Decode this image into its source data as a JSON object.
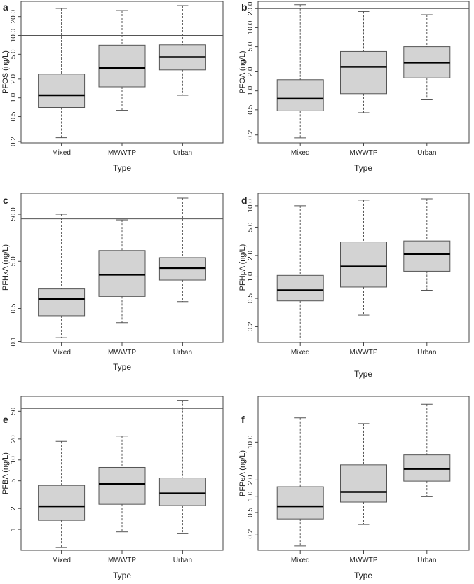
{
  "chart_data": [
    {
      "type": "box",
      "panel": "a",
      "ylabel": "PFOS (ng/L)",
      "xlabel": "Type",
      "yscale": "log",
      "ylim": [
        0.19,
        35
      ],
      "yticks": [
        0.2,
        0.5,
        1.0,
        2.0,
        5.0,
        10.0,
        20.0
      ],
      "ytick_labels": [
        "0.2",
        "0.5",
        "1.0",
        "2.0",
        "5.0",
        "10.0",
        "20.0"
      ],
      "reference_line": 10,
      "categories": [
        "Mixed",
        "MWWTP",
        "Urban"
      ],
      "boxes": [
        {
          "min": 0.23,
          "q1": 0.7,
          "median": 1.1,
          "q3": 2.4,
          "max": 27
        },
        {
          "min": 0.63,
          "q1": 1.5,
          "median": 3.0,
          "q3": 7.0,
          "max": 25
        },
        {
          "min": 1.1,
          "q1": 2.8,
          "median": 4.5,
          "q3": 7.1,
          "max": 30
        }
      ]
    },
    {
      "type": "box",
      "panel": "b",
      "ylabel": "PFOA (ng/L)",
      "xlabel": "Type",
      "yscale": "log",
      "ylim": [
        0.15,
        26
      ],
      "yticks": [
        0.2,
        0.5,
        1.0,
        2.0,
        5.0,
        10.0,
        20.0
      ],
      "ytick_labels": [
        "0.2",
        "0.5",
        "1.0",
        "2.0",
        "5.0",
        "10.0",
        "20.0"
      ],
      "reference_line": 20,
      "categories": [
        "Mixed",
        "MWWTP",
        "Urban"
      ],
      "boxes": [
        {
          "min": 0.18,
          "q1": 0.48,
          "median": 0.75,
          "q3": 1.5,
          "max": 23
        },
        {
          "min": 0.45,
          "q1": 0.9,
          "median": 2.4,
          "q3": 4.2,
          "max": 18
        },
        {
          "min": 0.72,
          "q1": 1.6,
          "median": 2.8,
          "q3": 5.0,
          "max": 16
        }
      ]
    },
    {
      "type": "box",
      "panel": "c",
      "ylabel": "PFHxA (ng/L)",
      "xlabel": "Type",
      "yscale": "log",
      "ylim": [
        0.095,
        140
      ],
      "yticks": [
        0.1,
        0.5,
        5.0,
        50.0
      ],
      "ytick_labels": [
        "0.1",
        "0.5",
        "5.0",
        "50.0"
      ],
      "reference_line": 40,
      "categories": [
        "Mixed",
        "MWWTP",
        "Urban"
      ],
      "boxes": [
        {
          "min": 0.12,
          "q1": 0.35,
          "median": 0.8,
          "q3": 1.3,
          "max": 50
        },
        {
          "min": 0.25,
          "q1": 0.9,
          "median": 2.6,
          "q3": 8.5,
          "max": 38
        },
        {
          "min": 0.7,
          "q1": 2.0,
          "median": 3.6,
          "q3": 6.0,
          "max": 110
        }
      ]
    },
    {
      "type": "box",
      "panel": "d",
      "ylabel": "PFHpA (ng/L)",
      "xlabel": "Type",
      "yscale": "log",
      "ylim": [
        0.12,
        15
      ],
      "yticks": [
        0.2,
        0.5,
        1.0,
        2.0,
        5.0,
        10.0
      ],
      "ytick_labels": [
        "0.2",
        "0.5",
        "1.0",
        "2.0",
        "5.0",
        "10.0"
      ],
      "reference_line": null,
      "categories": [
        "Mixed",
        "MWWTP",
        "Urban"
      ],
      "boxes": [
        {
          "min": 0.13,
          "q1": 0.46,
          "median": 0.65,
          "q3": 1.05,
          "max": 10
        },
        {
          "min": 0.29,
          "q1": 0.72,
          "median": 1.4,
          "q3": 3.1,
          "max": 12
        },
        {
          "min": 0.65,
          "q1": 1.2,
          "median": 2.1,
          "q3": 3.2,
          "max": 12.5
        }
      ]
    },
    {
      "type": "box",
      "panel": "e",
      "ylabel": "PFBA (ng/L)",
      "xlabel": "Type",
      "yscale": "log",
      "ylim": [
        0.5,
        82
      ],
      "yticks": [
        1,
        2,
        5,
        10,
        20,
        50
      ],
      "ytick_labels": [
        "1",
        "2",
        "5",
        "10",
        "20",
        "50"
      ],
      "reference_line": 55,
      "categories": [
        "Mixed",
        "MWWTP",
        "Urban"
      ],
      "boxes": [
        {
          "min": 0.55,
          "q1": 1.35,
          "median": 2.15,
          "q3": 4.3,
          "max": 18.5
        },
        {
          "min": 0.92,
          "q1": 2.3,
          "median": 4.5,
          "q3": 7.8,
          "max": 22
        },
        {
          "min": 0.88,
          "q1": 2.2,
          "median": 3.3,
          "q3": 5.5,
          "max": 72
        }
      ]
    },
    {
      "type": "box",
      "panel": "f",
      "ylabel": "PFPeA (ng/L)",
      "xlabel": "Type",
      "yscale": "log",
      "ylim": [
        0.1,
        70
      ],
      "yticks": [
        0.2,
        0.5,
        1.0,
        2.0,
        10.0
      ],
      "ytick_labels": [
        "0.2",
        "0.5",
        "1.0",
        "2.0",
        "10.0"
      ],
      "reference_line": null,
      "categories": [
        "Mixed",
        "MWWTP",
        "Urban"
      ],
      "boxes": [
        {
          "min": 0.12,
          "q1": 0.38,
          "median": 0.65,
          "q3": 1.5,
          "max": 28
        },
        {
          "min": 0.3,
          "q1": 0.78,
          "median": 1.2,
          "q3": 3.8,
          "max": 22
        },
        {
          "min": 0.98,
          "q1": 1.9,
          "median": 3.2,
          "q3": 5.8,
          "max": 50
        }
      ]
    }
  ]
}
